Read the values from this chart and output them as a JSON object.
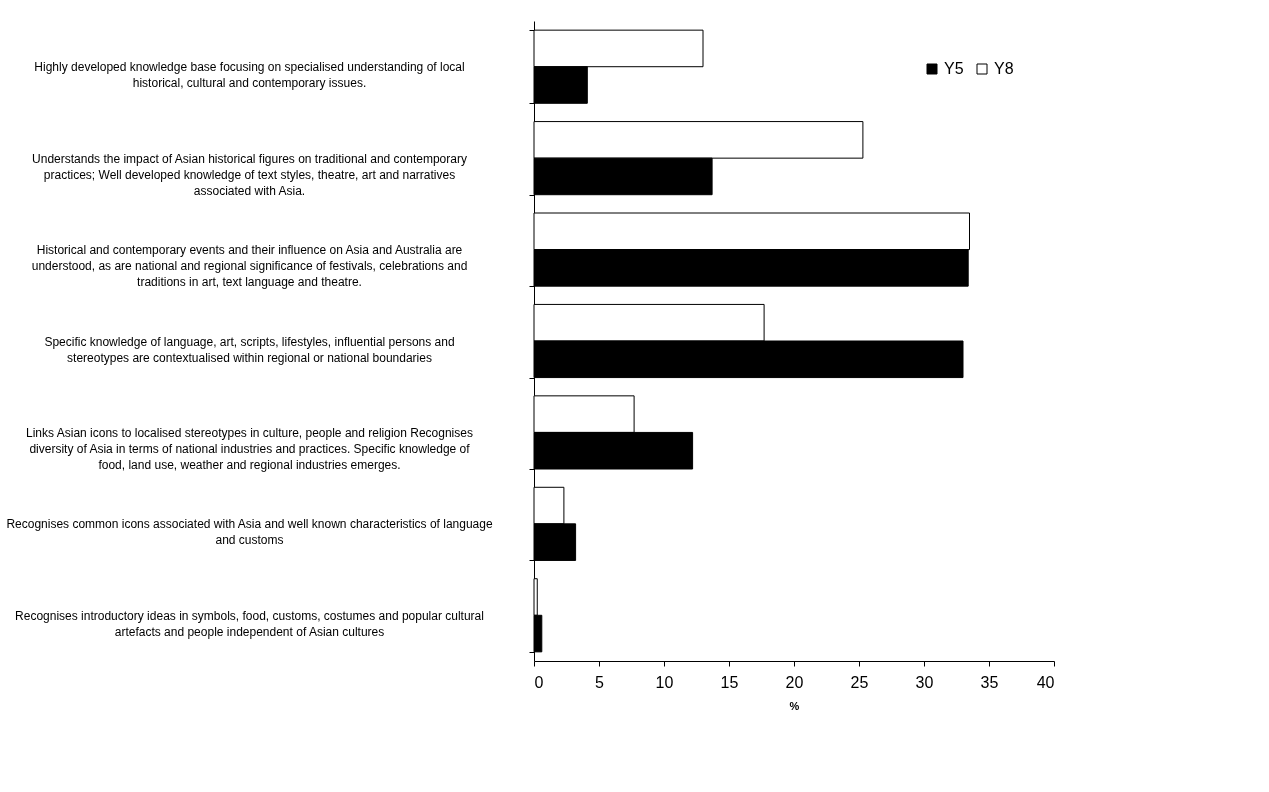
{
  "chart_data": {
    "type": "bar",
    "orientation": "horizontal",
    "xlabel": "%",
    "categories": [
      "Highly developed knowledge base focusing on specialised understanding of local historical, cultural and contemporary issues.",
      "Understands the impact of Asian historical figures on traditional and contemporary practices; Well developed knowledge of text styles, theatre, art and narratives associated with Asia.",
      "Historical and contemporary events and their influence on Asia and Australia are understood, as are national and regional significance of festivals, celebrations and traditions in art, text language and theatre.",
      "Specific knowledge of language, art, scripts, lifestyles, influential persons and stereotypes are contextualised within regional or national boundaries",
      "Links Asian icons to localised stereotypes in culture, people and religion Recognises diversity of Asia in terms of national industries and practices. Specific knowledge of food, land use, weather and regional industries emerges.",
      "Recognises common icons associated with Asia and well known characteristics of language and customs",
      "Recognises introductory ideas in symbols, food, customs, costumes and popular cultural artefacts and people independent of Asian cultures"
    ],
    "series": [
      {
        "name": "Y8",
        "color": "#ffffff",
        "values": [
          13.0,
          25.3,
          33.5,
          17.7,
          7.7,
          2.3,
          0.25
        ]
      },
      {
        "name": "Y5",
        "color": "#000000",
        "values": [
          4.1,
          13.7,
          33.4,
          33.0,
          12.2,
          3.2,
          0.6
        ]
      }
    ],
    "xlim": [
      0,
      40
    ],
    "xticks": [
      0,
      5,
      10,
      15,
      20,
      25,
      30,
      35,
      40
    ],
    "grid": false,
    "legend": "top right"
  }
}
